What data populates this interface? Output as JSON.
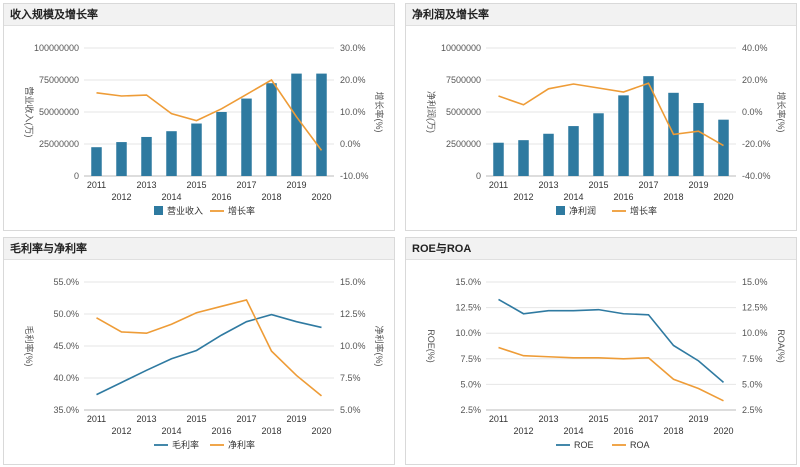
{
  "colors": {
    "bar": "#2e7aa0",
    "growth": "#ee9c37",
    "line_blue": "#2f7aa1",
    "line_orange": "#ee9c37"
  },
  "chart_data": [
    {
      "type": "bar",
      "title": "收入规模及增长率",
      "categories": [
        "2011",
        "2012",
        "2013",
        "2014",
        "2015",
        "2016",
        "2017",
        "2018",
        "2019",
        "2020"
      ],
      "series": [
        {
          "name": "营业收入",
          "type": "bar",
          "axis": "left",
          "values": [
            22500000,
            26500000,
            30500000,
            35000000,
            41000000,
            50000000,
            60500000,
            72500000,
            80000000,
            80000000
          ]
        },
        {
          "name": "增长率",
          "type": "line",
          "axis": "right",
          "values": [
            16.0,
            15.0,
            15.3,
            9.5,
            7.3,
            11.0,
            15.5,
            20.0,
            8.5,
            -2.0
          ]
        }
      ],
      "ylabel": "营业收入(万)",
      "ylabel_right": "增长率(%)",
      "left_axis": {
        "min": 0,
        "max": 100000000,
        "ticks": [
          0,
          25000000,
          50000000,
          75000000,
          100000000
        ],
        "tick_labels": [
          "0",
          "25000000",
          "50000000",
          "75000000",
          "100000000"
        ]
      },
      "right_axis": {
        "min": -10,
        "max": 30,
        "ticks": [
          -10,
          0,
          10,
          20,
          30
        ],
        "tick_labels": [
          "-10.0%",
          "0.0%",
          "10.0%",
          "20.0%",
          "30.0%"
        ]
      },
      "legend": "bottom"
    },
    {
      "type": "bar",
      "title": "净利润及增长率",
      "categories": [
        "2011",
        "2012",
        "2013",
        "2014",
        "2015",
        "2016",
        "2017",
        "2018",
        "2019",
        "2020"
      ],
      "series": [
        {
          "name": "净利润",
          "type": "bar",
          "axis": "left",
          "values": [
            2600000,
            2800000,
            3300000,
            3900000,
            4900000,
            6300000,
            7800000,
            6500000,
            5700000,
            4400000
          ]
        },
        {
          "name": "增长率",
          "type": "line",
          "axis": "right",
          "values": [
            10.0,
            4.5,
            14.5,
            17.5,
            15.0,
            12.5,
            18.0,
            -14.0,
            -12.0,
            -21.0
          ]
        }
      ],
      "ylabel": "净利润(万)",
      "ylabel_right": "增长率(%)",
      "left_axis": {
        "min": 0,
        "max": 10000000,
        "ticks": [
          0,
          2500000,
          5000000,
          7500000,
          10000000
        ],
        "tick_labels": [
          "0",
          "2500000",
          "5000000",
          "7500000",
          "10000000"
        ]
      },
      "right_axis": {
        "min": -40,
        "max": 40,
        "ticks": [
          -40,
          -20,
          0,
          20,
          40
        ],
        "tick_labels": [
          "-40.0%",
          "-20.0%",
          "0.0%",
          "20.0%",
          "40.0%"
        ]
      },
      "legend": "bottom"
    },
    {
      "type": "line",
      "title": "毛利率与净利率",
      "categories": [
        "2011",
        "2012",
        "2013",
        "2014",
        "2015",
        "2016",
        "2017",
        "2018",
        "2019",
        "2020"
      ],
      "series": [
        {
          "name": "毛利率",
          "type": "line",
          "axis": "left",
          "values": [
            37.4,
            39.3,
            41.2,
            43.0,
            44.3,
            46.7,
            48.8,
            49.9,
            48.8,
            47.9
          ]
        },
        {
          "name": "净利率",
          "type": "line",
          "axis": "right",
          "values": [
            12.2,
            11.1,
            11.0,
            11.7,
            12.6,
            13.1,
            13.6,
            9.6,
            7.7,
            6.1
          ]
        }
      ],
      "ylabel": "毛利率(%)",
      "ylabel_right": "净利率(%)",
      "left_axis": {
        "min": 35,
        "max": 55,
        "ticks": [
          35,
          40,
          45,
          50,
          55
        ],
        "tick_labels": [
          "35.0%",
          "40.0%",
          "45.0%",
          "50.0%",
          "55.0%"
        ]
      },
      "right_axis": {
        "min": 5,
        "max": 15,
        "ticks": [
          5,
          7.5,
          10,
          12.5,
          15
        ],
        "tick_labels": [
          "5.0%",
          "7.5%",
          "10.0%",
          "12.5%",
          "15.0%"
        ]
      },
      "legend": "bottom"
    },
    {
      "type": "line",
      "title": "ROE与ROA",
      "categories": [
        "2011",
        "2012",
        "2013",
        "2014",
        "2015",
        "2016",
        "2017",
        "2018",
        "2019",
        "2020"
      ],
      "series": [
        {
          "name": "ROE",
          "type": "line",
          "axis": "left",
          "values": [
            13.3,
            11.9,
            12.2,
            12.2,
            12.3,
            11.9,
            11.8,
            8.8,
            7.3,
            5.2
          ]
        },
        {
          "name": "ROA",
          "type": "line",
          "axis": "right",
          "values": [
            8.6,
            7.8,
            7.7,
            7.6,
            7.6,
            7.5,
            7.6,
            5.5,
            4.6,
            3.4
          ]
        }
      ],
      "ylabel": "ROE(%)",
      "ylabel_right": "ROA(%)",
      "left_axis": {
        "min": 2.5,
        "max": 15,
        "ticks": [
          2.5,
          5,
          7.5,
          10,
          12.5,
          15
        ],
        "tick_labels": [
          "2.5%",
          "5.0%",
          "7.5%",
          "10.0%",
          "12.5%",
          "15.0%"
        ]
      },
      "right_axis": {
        "min": 2.5,
        "max": 15,
        "ticks": [
          2.5,
          5,
          7.5,
          10,
          12.5,
          15
        ],
        "tick_labels": [
          "2.5%",
          "5.0%",
          "7.5%",
          "10.0%",
          "12.5%",
          "15.0%"
        ]
      },
      "legend": "bottom"
    }
  ]
}
